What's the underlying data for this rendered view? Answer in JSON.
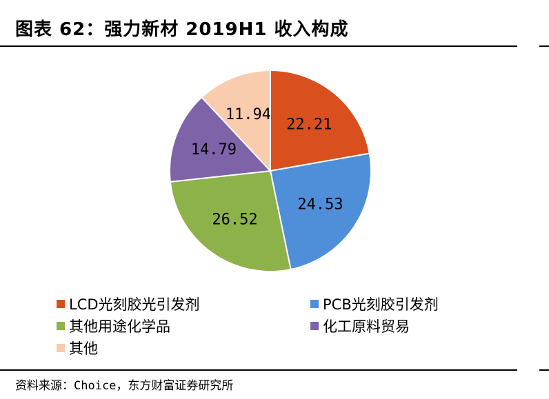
{
  "page": {
    "title": "图表 62：强力新材 2019H1 收入构成",
    "source": "资料来源：Choice，东方财富证券研究所"
  },
  "chart_data": {
    "type": "pie",
    "title": "",
    "slices": [
      {
        "label": "LCD光刻胶光引发剂",
        "value": 22.21,
        "display": "22.21",
        "color": "#D9501E"
      },
      {
        "label": "PCB光刻胶引发剂",
        "value": 24.53,
        "display": "24.53",
        "color": "#4F8FD9"
      },
      {
        "label": "其他用途化学品",
        "value": 26.52,
        "display": "26.52",
        "color": "#8DB24A"
      },
      {
        "label": "化工原料贸易",
        "value": 14.79,
        "display": "14.79",
        "color": "#7F63A8"
      },
      {
        "label": "其他",
        "value": 11.94,
        "display": "11.94",
        "color": "#F8CCAC"
      }
    ],
    "start_angle": "12 o'clock",
    "direction": "clockwise",
    "legend_position": "bottom"
  }
}
